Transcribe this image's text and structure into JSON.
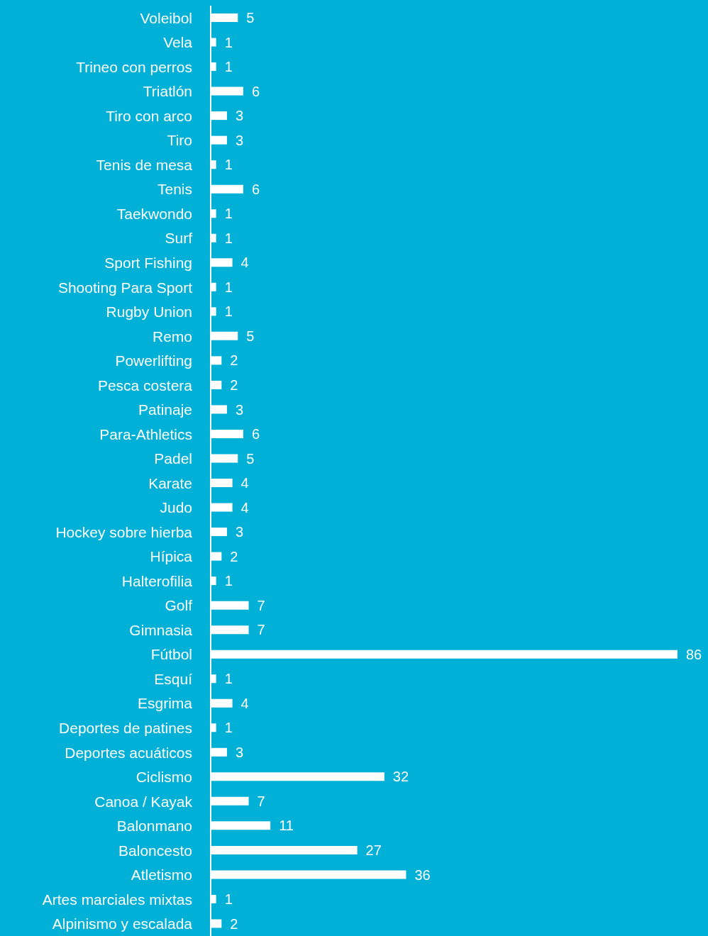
{
  "chart_data": {
    "type": "bar",
    "orientation": "horizontal",
    "categories": [
      "Voleibol",
      "Vela",
      "Trineo con perros",
      "Triatlón",
      "Tiro con arco",
      "Tiro",
      "Tenis de mesa",
      "Tenis",
      "Taekwondo",
      "Surf",
      "Sport Fishing",
      "Shooting Para Sport",
      "Rugby Union",
      "Remo",
      "Powerlifting",
      "Pesca costera",
      "Patinaje",
      "Para-Athletics",
      "Padel",
      "Karate",
      "Judo",
      "Hockey sobre hierba",
      "Hípica",
      "Halterofilia",
      "Golf",
      "Gimnasia",
      "Fútbol",
      "Esquí",
      "Esgrima",
      "Deportes de patines",
      "Deportes acuáticos",
      "Ciclismo",
      "Canoa / Kayak",
      "Balonmano",
      "Baloncesto",
      "Atletismo",
      "Artes marciales mixtas",
      "Alpinismo y escalada"
    ],
    "values": [
      5,
      1,
      1,
      6,
      3,
      3,
      1,
      6,
      1,
      1,
      4,
      1,
      1,
      5,
      2,
      2,
      3,
      6,
      5,
      4,
      4,
      3,
      2,
      1,
      7,
      7,
      86,
      1,
      4,
      1,
      3,
      32,
      7,
      11,
      27,
      36,
      1,
      2
    ],
    "color": "#ffffff",
    "data_labels": true,
    "grid": false,
    "legend": false
  }
}
